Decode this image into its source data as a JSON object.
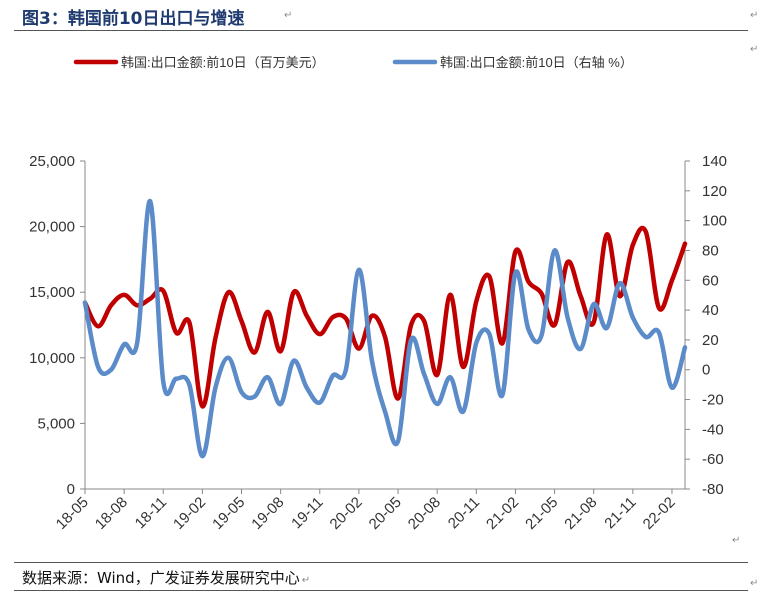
{
  "title": "图3：韩国前10日出口与增速",
  "source": "数据来源：Wind，广发证券发展研究中心",
  "paragraph_mark": "↵",
  "colors": {
    "red": "#C00000",
    "blue": "#5B8BC9",
    "axis": "#888888",
    "text": "#333333"
  },
  "chart_data": {
    "type": "line",
    "title": "",
    "legend_position": "top",
    "xlabel": "",
    "ylabel_left": "",
    "ylabel_right": "",
    "ylim_left": [
      0,
      25000
    ],
    "ylim_right": [
      -80,
      140
    ],
    "yticks_left": [
      "0",
      "5,000",
      "10,000",
      "15,000",
      "20,000",
      "25,000"
    ],
    "yticks_right": [
      "-80",
      "-60",
      "-40",
      "-20",
      "0",
      "20",
      "40",
      "60",
      "80",
      "100",
      "120",
      "140"
    ],
    "x_labels": [
      "18-05",
      "18-08",
      "18-11",
      "19-02",
      "19-05",
      "19-08",
      "19-11",
      "20-02",
      "20-05",
      "20-08",
      "20-11",
      "21-02",
      "21-05",
      "21-08",
      "21-11",
      "22-02"
    ],
    "x_label_index": [
      0,
      3,
      6,
      9,
      12,
      15,
      18,
      21,
      24,
      27,
      30,
      33,
      36,
      39,
      42,
      45
    ],
    "series": [
      {
        "name": "韩国:出口金额:前10日（百万美元）",
        "axis": "left",
        "values": [
          14200,
          12400,
          14000,
          14800,
          14000,
          14500,
          15100,
          11900,
          12700,
          6300,
          11500,
          15000,
          12800,
          10400,
          13500,
          10500,
          15000,
          13200,
          11800,
          13100,
          13000,
          10700,
          13200,
          11600,
          6900,
          12500,
          12800,
          8700,
          14800,
          9300,
          14300,
          16200,
          11100,
          18100,
          15800,
          14900,
          12500,
          17300,
          14700,
          12700,
          19400,
          14700,
          18600,
          19600,
          13800,
          15900,
          18700
        ]
      },
      {
        "name": "韩国:出口金额:前10日（右轴 %）",
        "axis": "right",
        "values": [
          45,
          2,
          0,
          17,
          18,
          113,
          -8,
          -6,
          -10,
          -58,
          -12,
          8,
          -15,
          -18,
          -5,
          -23,
          6,
          -12,
          -22,
          -4,
          0,
          67,
          6,
          -28,
          -48,
          20,
          -3,
          -23,
          -5,
          -28,
          18,
          24,
          -17,
          65,
          27,
          23,
          80,
          35,
          14,
          44,
          28,
          58,
          35,
          22,
          25,
          -12,
          15
        ]
      }
    ]
  }
}
